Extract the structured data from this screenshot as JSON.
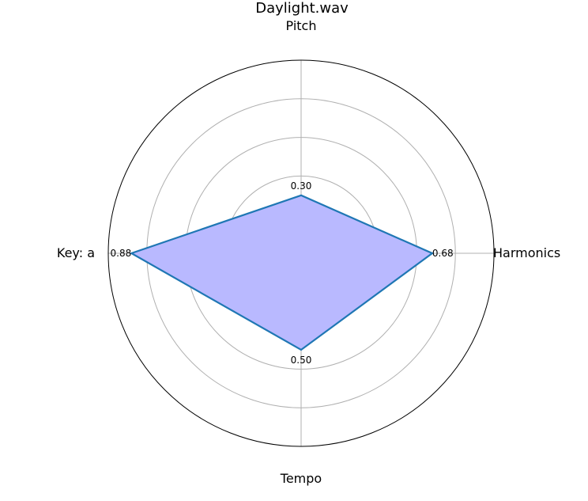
{
  "chart_data": {
    "type": "radar",
    "title": "Daylight.wav",
    "axes": [
      "Pitch",
      "Harmonics",
      "Tempo",
      "Key: a"
    ],
    "values": [
      0.3,
      0.68,
      0.5,
      0.88
    ],
    "value_labels": [
      "0.30",
      "0.68",
      "0.50",
      "0.88"
    ],
    "rlim": [
      0,
      1
    ],
    "rgrid": [
      0.2,
      0.4,
      0.6,
      0.8
    ],
    "grid": true,
    "colors": {
      "fill": "#b9b9ff",
      "line": "#1f77b4",
      "grid": "#b0b0b0",
      "frame": "#000000"
    }
  }
}
